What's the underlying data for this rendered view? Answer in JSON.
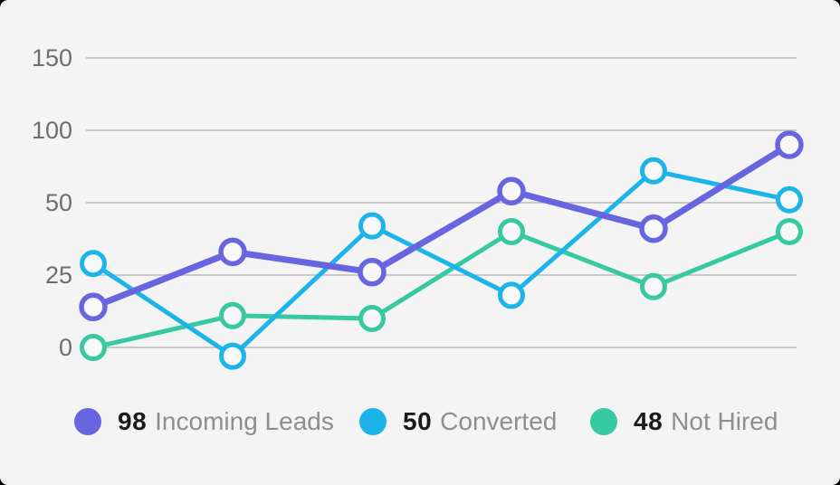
{
  "chart_data": {
    "type": "line",
    "title": "",
    "xlabel": "",
    "ylabel": "",
    "grid": true,
    "legend_position": "bottom",
    "y_axis": {
      "tick_labels": [
        "150",
        "100",
        "50",
        "25",
        "0"
      ],
      "tick_values": [
        150,
        100,
        50,
        25,
        0
      ],
      "evenly_spaced_ticks": true
    },
    "x": [
      1,
      2,
      3,
      4,
      5,
      6
    ],
    "series": [
      {
        "name": "Incoming Leads",
        "legend_value": "98",
        "color": "#6865e1",
        "values": [
          14,
          33,
          26,
          58,
          41,
          90
        ]
      },
      {
        "name": "Converted",
        "legend_value": "50",
        "color": "#1db5e9",
        "values": [
          29,
          -3,
          42,
          18,
          72,
          52
        ]
      },
      {
        "name": "Not Hired",
        "legend_value": "48",
        "color": "#37c9a0",
        "values": [
          0,
          11,
          10,
          40,
          21,
          40
        ]
      }
    ]
  },
  "colors": {
    "card_background": "#f4f4f4",
    "gridline": "#c9c9c9",
    "tick_label": "#6e6e6e",
    "legend_value_text": "#1a1a1a",
    "legend_label_text": "#8e8e8e",
    "marker_fill": "#f8f8f8"
  }
}
